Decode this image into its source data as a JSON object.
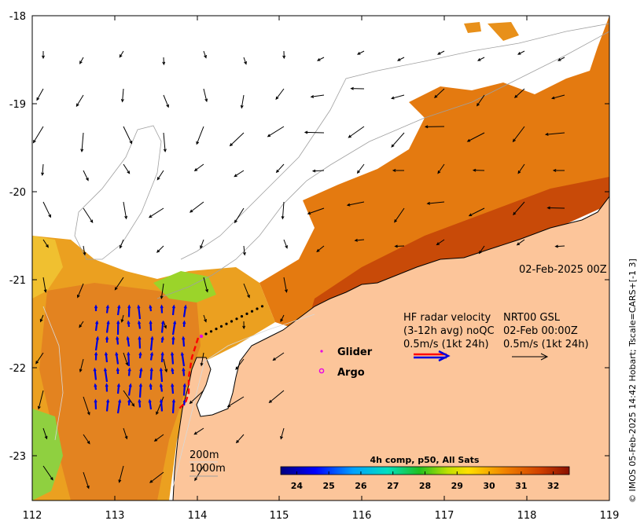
{
  "map": {
    "lon_ticks": [
      "112",
      "113",
      "114",
      "115",
      "116",
      "117",
      "118",
      "119"
    ],
    "lat_ticks": [
      "-18",
      "-19",
      "-20",
      "-21",
      "-22",
      "-23"
    ],
    "timestamp": "02-Feb-2025 00Z",
    "copyright": "© IMOS 05-Feb-2025 14:42 Hobart; Tscale=CARS+[-1 3]",
    "legend": {
      "hf_line1": "HF radar velocity",
      "hf_line2": "(3-12h avg) noQC",
      "hf_line3": "0.5m/s (1kt 24h)",
      "nrt_line1": "NRT00 GSL",
      "nrt_line2": "02-Feb 00:00Z",
      "nrt_line3": "0.5m/s (1kt 24h)",
      "glider": "Glider",
      "argo": "Argo"
    },
    "depth_labels": [
      "200m",
      "1000m"
    ],
    "colorbar": {
      "title": "4h comp, p50, All Sats",
      "ticks": [
        "24",
        "25",
        "26",
        "27",
        "28",
        "29",
        "30",
        "31",
        "32"
      ],
      "range": [
        23.5,
        32.5
      ]
    },
    "colors": {
      "land": "#fcc59a",
      "hf_vectors": "#0000dd",
      "nrt_vectors": "#000000",
      "glider": "#e600e6",
      "red_track": "#ff0000"
    }
  }
}
